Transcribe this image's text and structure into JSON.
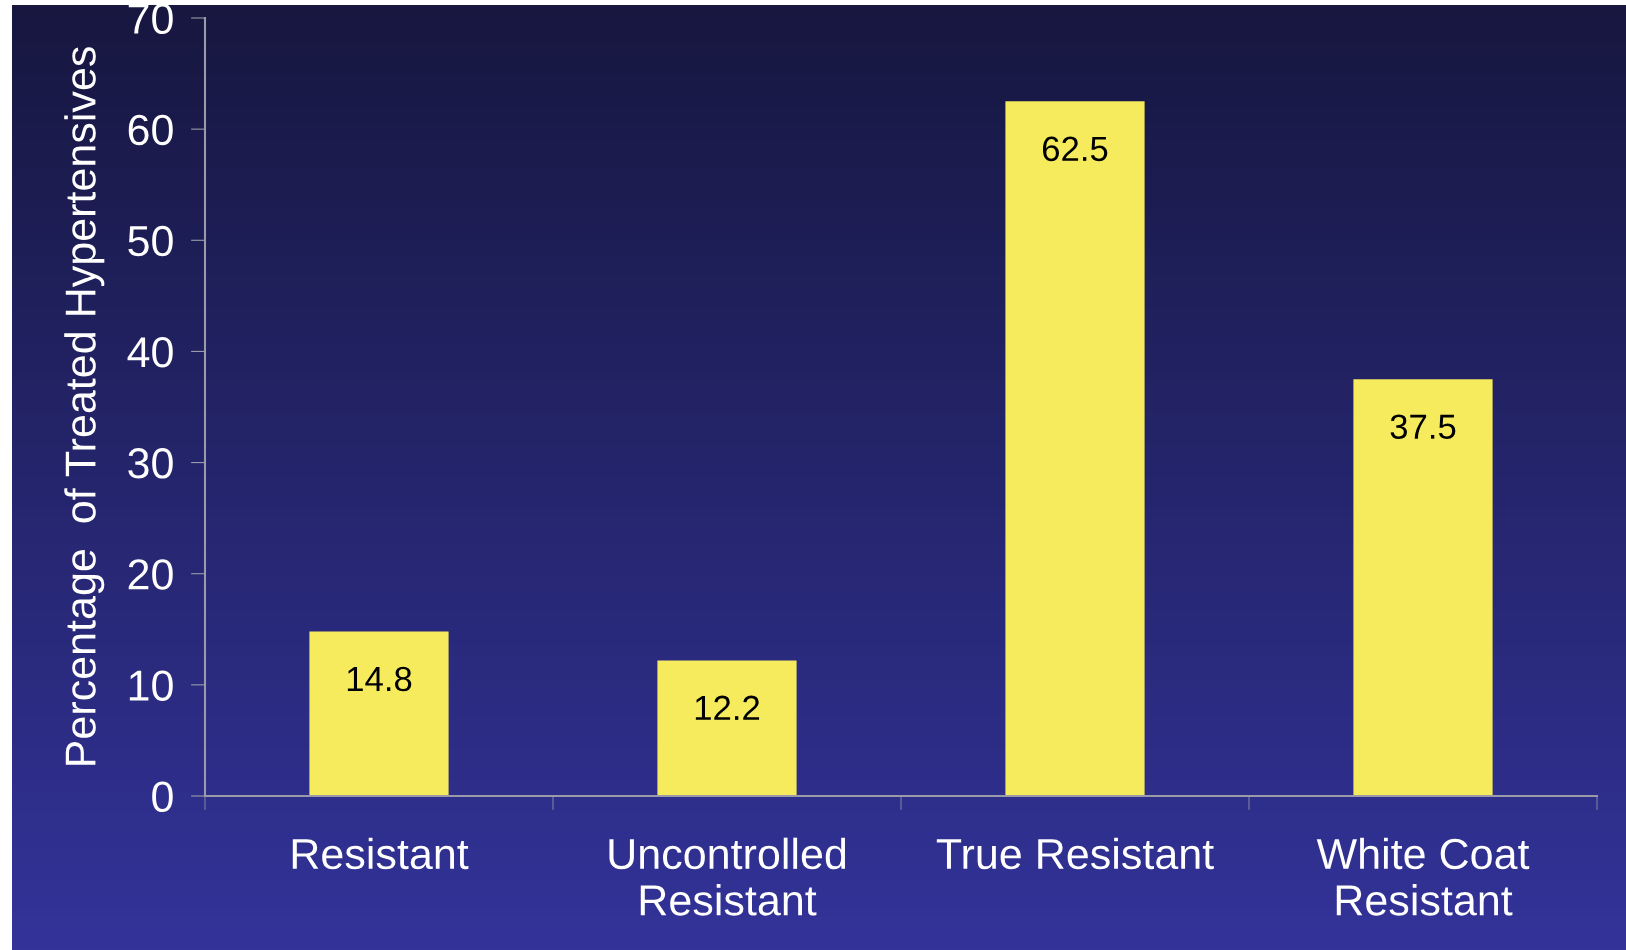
{
  "chart_data": {
    "type": "bar",
    "ylabel": "Percentage  of Treated Hypertensives",
    "categories": [
      "Resistant",
      "Uncontrolled\nResistant",
      "True Resistant",
      "White Coat\nResistant"
    ],
    "values": [
      14.8,
      12.2,
      62.5,
      37.5
    ],
    "color": "#f5eb5c",
    "ylim": [
      0,
      70
    ],
    "yticks": [
      0,
      10,
      20,
      30,
      40,
      50,
      60,
      70
    ],
    "grid": false,
    "data_labels": true
  }
}
